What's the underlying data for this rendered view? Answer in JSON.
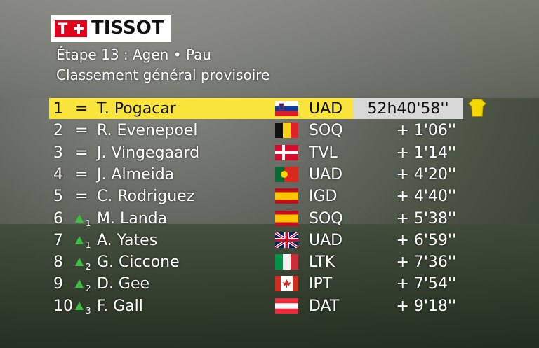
{
  "header": {
    "logo_mark": "T",
    "logo": "TISSOT",
    "stage": "Étape 13 : Agen • Pau",
    "subtitle": "Classement général provisoire"
  },
  "table": {
    "rows": [
      {
        "rank": 1,
        "movement": "=",
        "name": "T. Pogacar",
        "team": "UAD",
        "time": "52h40'58''"
      },
      {
        "rank": 2,
        "movement": "=",
        "name": "R. Evenepoel",
        "team": "SOQ",
        "time": "+ 1'06''"
      },
      {
        "rank": 3,
        "movement": "=",
        "name": "J. Vingegaard",
        "team": "TVL",
        "time": "+ 1'14''"
      },
      {
        "rank": 4,
        "movement": "=",
        "name": "J. Almeida",
        "team": "UAD",
        "time": "+ 4'20''"
      },
      {
        "rank": 5,
        "movement": "=",
        "name": "C. Rodriguez",
        "team": "IGD",
        "time": "+ 4'40''"
      },
      {
        "rank": 6,
        "movement": 1,
        "name": "M. Landa",
        "team": "SOQ",
        "time": "+ 5'38''"
      },
      {
        "rank": 7,
        "movement": 1,
        "name": "A. Yates",
        "team": "UAD",
        "time": "+ 6'59''"
      },
      {
        "rank": 8,
        "movement": 2,
        "name": "G. Ciccone",
        "team": "LTK",
        "time": "+ 7'36''"
      },
      {
        "rank": 9,
        "movement": 2,
        "name": "D. Gee",
        "team": "IPT",
        "time": "+ 7'54''"
      },
      {
        "rank": 10,
        "movement": 3,
        "name": "F. Gall",
        "team": "DAT",
        "time": "+ 9'18''"
      }
    ]
  }
}
